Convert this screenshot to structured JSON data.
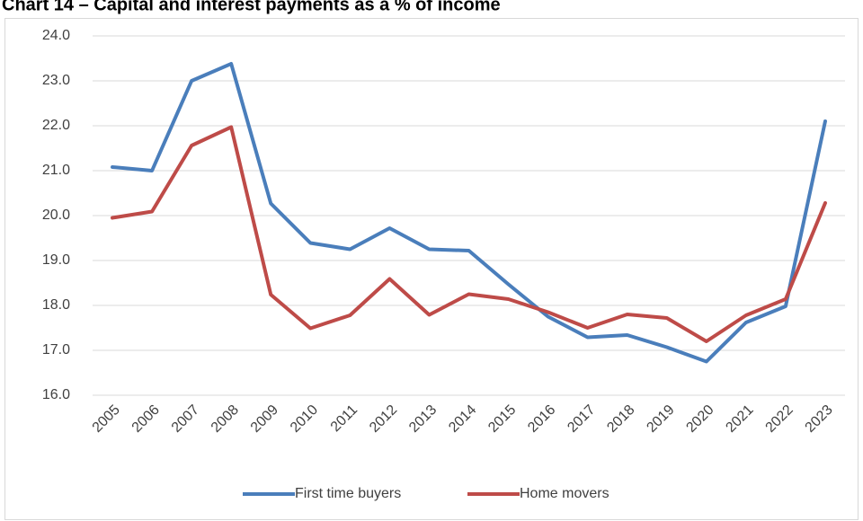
{
  "chart_data": {
    "type": "line",
    "title": "Chart 14 – Capital and interest payments as a % of income",
    "categories": [
      "2005",
      "2006",
      "2007",
      "2008",
      "2009",
      "2010",
      "2011",
      "2012",
      "2013",
      "2014",
      "2015",
      "2016",
      "2017",
      "2018",
      "2019",
      "2020",
      "2021",
      "2022",
      "2023"
    ],
    "series": [
      {
        "name": "First time buyers",
        "color": "#4a7ebb",
        "values": [
          21.08,
          21.0,
          23.0,
          23.38,
          20.27,
          19.39,
          19.25,
          19.72,
          19.25,
          19.22,
          18.47,
          17.75,
          17.29,
          17.34,
          17.07,
          16.75,
          17.62,
          17.98,
          22.1
        ]
      },
      {
        "name": "Home movers",
        "color": "#be4b48",
        "values": [
          19.95,
          20.09,
          21.56,
          21.97,
          18.24,
          17.49,
          17.78,
          18.59,
          17.79,
          18.25,
          18.14,
          17.85,
          17.5,
          17.8,
          17.72,
          17.2,
          17.78,
          18.14,
          20.28
        ]
      }
    ],
    "ylim": [
      16,
      24
    ],
    "yticks": [
      {
        "value": 16,
        "label": "16.0"
      },
      {
        "value": 17,
        "label": "17.0"
      },
      {
        "value": 18,
        "label": "18.0"
      },
      {
        "value": 19,
        "label": "19.0"
      },
      {
        "value": 20,
        "label": "20.0"
      },
      {
        "value": 21,
        "label": "21.0"
      },
      {
        "value": 22,
        "label": "22.0"
      },
      {
        "value": 23,
        "label": "23.0"
      },
      {
        "value": 24,
        "label": "24.0"
      }
    ],
    "grid": true,
    "legend": "bottom"
  }
}
